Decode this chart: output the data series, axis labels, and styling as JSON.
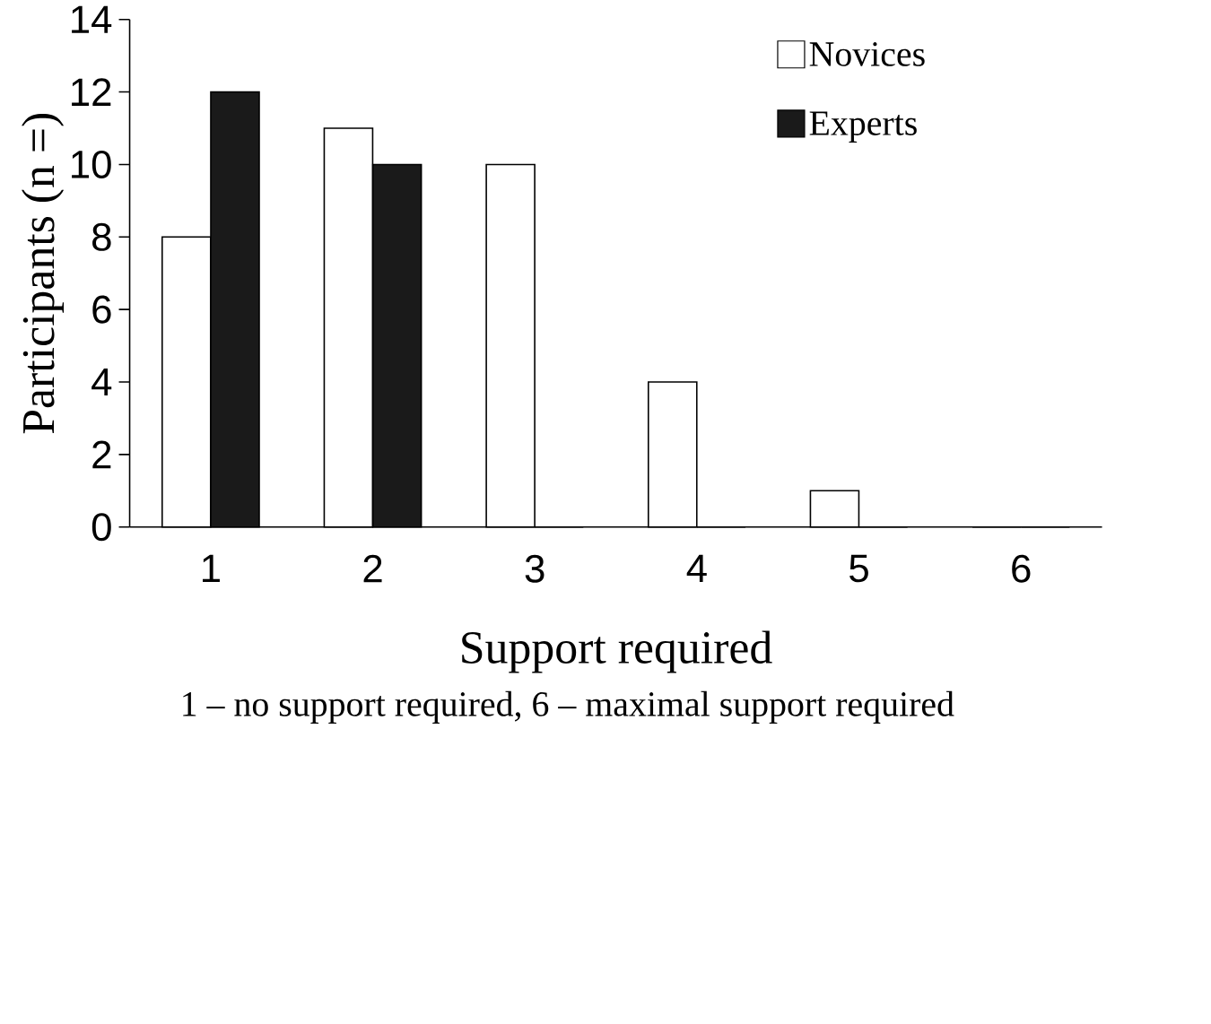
{
  "chart_data": {
    "type": "bar",
    "xlabel": "Support required",
    "ylabel": "Participants (n =)",
    "annotations": [
      "1 – no support required, 6 – maximal support required"
    ],
    "categories": [
      "1",
      "2",
      "3",
      "4",
      "5",
      "6"
    ],
    "series": [
      {
        "name": "Novices",
        "color": "#ffffff",
        "values": [
          8,
          11,
          10,
          4,
          1,
          0
        ]
      },
      {
        "name": "Experts",
        "color": "#1a1a1a",
        "values": [
          12,
          10,
          0,
          0,
          0,
          0
        ]
      }
    ],
    "ylim": [
      0,
      14
    ],
    "yticks": [
      0,
      2,
      4,
      6,
      8,
      10,
      12,
      14
    ],
    "legend": "top right"
  }
}
